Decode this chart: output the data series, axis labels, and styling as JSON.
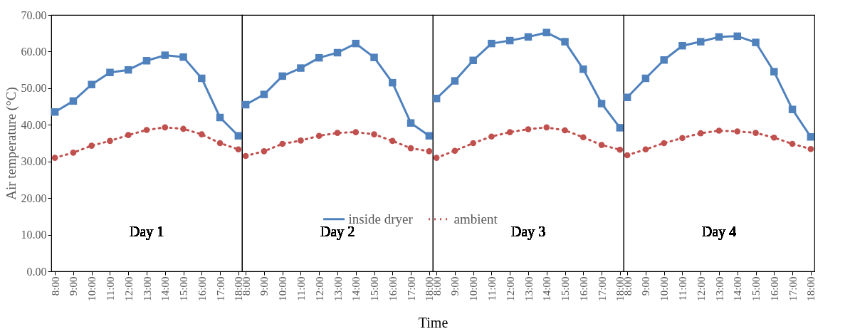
{
  "chart_data": [
    {
      "type": "line",
      "ylabel": "Air temperature (°C)",
      "categories": [
        "8:00",
        "9:00",
        "10:00",
        "11:00",
        "12:00",
        "13:00",
        "14:00",
        "15:00",
        "16:00",
        "17:00",
        "18:00"
      ],
      "ylim": [
        0,
        70
      ],
      "yticks": [
        {
          "value": 0,
          "label": "0.00"
        },
        {
          "value": 10,
          "label": "10.00"
        },
        {
          "value": 20,
          "label": "20.00"
        },
        {
          "value": 30,
          "label": "30.00"
        },
        {
          "value": 40,
          "label": "40.00"
        },
        {
          "value": 50,
          "label": "50.00"
        },
        {
          "value": 60,
          "label": "60.00"
        },
        {
          "value": 70,
          "label": "70.00"
        }
      ],
      "annotations": [
        "Day 1"
      ],
      "series": [
        {
          "color": "#4f81bd",
          "marker": "square",
          "line_style": "solid",
          "values": [
            43.5,
            46.5,
            51,
            54.3,
            55,
            57.5,
            59,
            58.5,
            52.7,
            42,
            37
          ]
        },
        {
          "color": "#c0504d",
          "marker": "circle",
          "line_style": "dotted",
          "values": [
            31,
            32.4,
            34.3,
            35.6,
            37.2,
            38.6,
            39.3,
            38.9,
            37.4,
            35,
            33.3
          ]
        }
      ]
    },
    {
      "type": "line",
      "xlabel": "Time",
      "categories": [
        "8:00",
        "9:00",
        "10:00",
        "11:00",
        "12:00",
        "13:00",
        "14:00",
        "15:00",
        "16:00",
        "17:00",
        "18:00"
      ],
      "ylim": [
        0,
        70
      ],
      "tick_labels": "x",
      "annotations": [
        "Day 2"
      ],
      "legend": "bottom",
      "series": [
        {
          "name": "inside dryer",
          "color": "#4f81bd",
          "marker": "square",
          "line_style": "solid",
          "values": [
            45.5,
            48.3,
            53.3,
            55.5,
            58.3,
            59.7,
            62.2,
            58.4,
            51.5,
            40.5,
            37
          ]
        },
        {
          "name": "ambient",
          "color": "#c0504d",
          "marker": "circle",
          "line_style": "dotted",
          "values": [
            31.5,
            32.8,
            34.8,
            35.7,
            37,
            37.8,
            38,
            37.4,
            35.6,
            33.6,
            32.8
          ]
        }
      ]
    },
    {
      "type": "line",
      "categories": [
        "8:00",
        "9:00",
        "10:00",
        "11:00",
        "12:00",
        "13:00",
        "14:00",
        "15:00",
        "16:00",
        "17:00",
        "18:00"
      ],
      "ylim": [
        0,
        70
      ],
      "tick_labels": "x",
      "annotations": [
        "Day 3"
      ],
      "series": [
        {
          "color": "#4f81bd",
          "marker": "square",
          "line_style": "solid",
          "values": [
            47.2,
            52,
            57.6,
            62.2,
            63,
            64,
            65.2,
            62.7,
            55.2,
            45.8,
            39.2
          ]
        },
        {
          "color": "#c0504d",
          "marker": "circle",
          "line_style": "dotted",
          "values": [
            31,
            32.9,
            35,
            36.8,
            38,
            38.8,
            39.3,
            38.5,
            36.6,
            34.5,
            33.2
          ]
        }
      ]
    },
    {
      "type": "line",
      "categories": [
        "8:00",
        "9:00",
        "10:00",
        "11:00",
        "12:00",
        "13:00",
        "14:00",
        "15:00",
        "16:00",
        "17:00",
        "18:00"
      ],
      "ylim": [
        0,
        70
      ],
      "tick_labels": "x",
      "annotations": [
        "Day 4"
      ],
      "series": [
        {
          "color": "#4f81bd",
          "marker": "square",
          "line_style": "solid",
          "values": [
            47.5,
            52.7,
            57.7,
            61.6,
            62.7,
            64,
            64.2,
            62.5,
            54.5,
            44.2,
            36.7
          ]
        },
        {
          "color": "#c0504d",
          "marker": "circle",
          "line_style": "dotted",
          "values": [
            31.7,
            33.3,
            35,
            36.4,
            37.7,
            38.4,
            38.2,
            37.8,
            36.5,
            34.8,
            33.4
          ]
        }
      ]
    }
  ]
}
